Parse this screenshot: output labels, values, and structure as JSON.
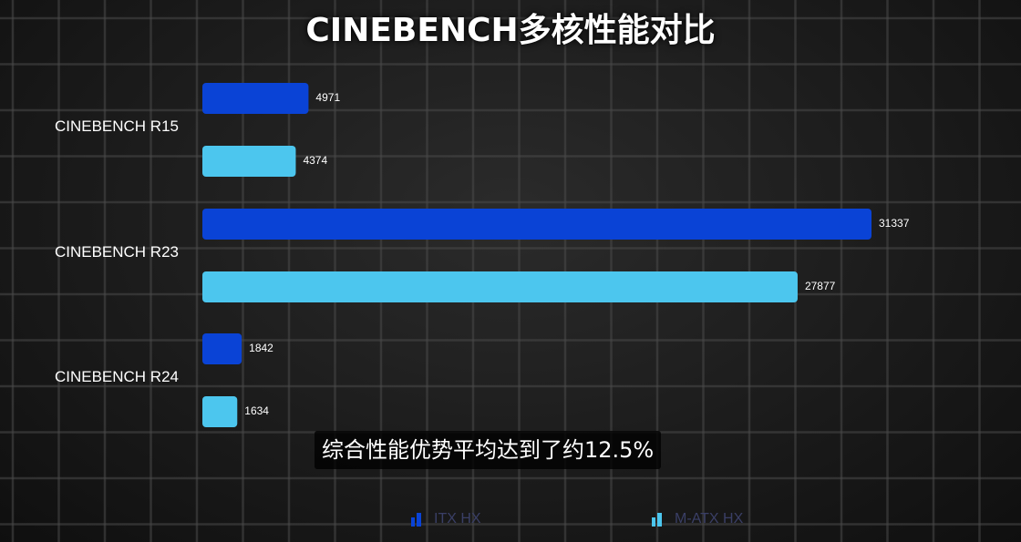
{
  "title": "CINEBENCH多核性能对比",
  "caption": "综合性能优势平均达到了约12.5%",
  "colors": {
    "itx": "#0a43d6",
    "matx": "#4cc6ee",
    "grid": "#4a4a4a",
    "legend_text": "#3a3f66"
  },
  "legend": [
    {
      "label": "ITX HX",
      "icon": "bar-chart-icon"
    },
    {
      "label": "M-ATX HX",
      "icon": "bar-chart-icon"
    }
  ],
  "chart_data": {
    "type": "bar",
    "orientation": "horizontal",
    "categories": [
      "CINEBENCH R15",
      "CINEBENCH R23",
      "CINEBENCH R24"
    ],
    "series": [
      {
        "name": "ITX HX",
        "values": [
          4971,
          31337,
          1842
        ]
      },
      {
        "name": "M-ATX HX",
        "values": [
          4374,
          27877,
          1634
        ]
      }
    ],
    "title": "CINEBENCH多核性能对比",
    "xlabel": "",
    "ylabel": "",
    "xlim": [
      0,
      31337
    ],
    "grid": true,
    "legend_position": "bottom"
  }
}
